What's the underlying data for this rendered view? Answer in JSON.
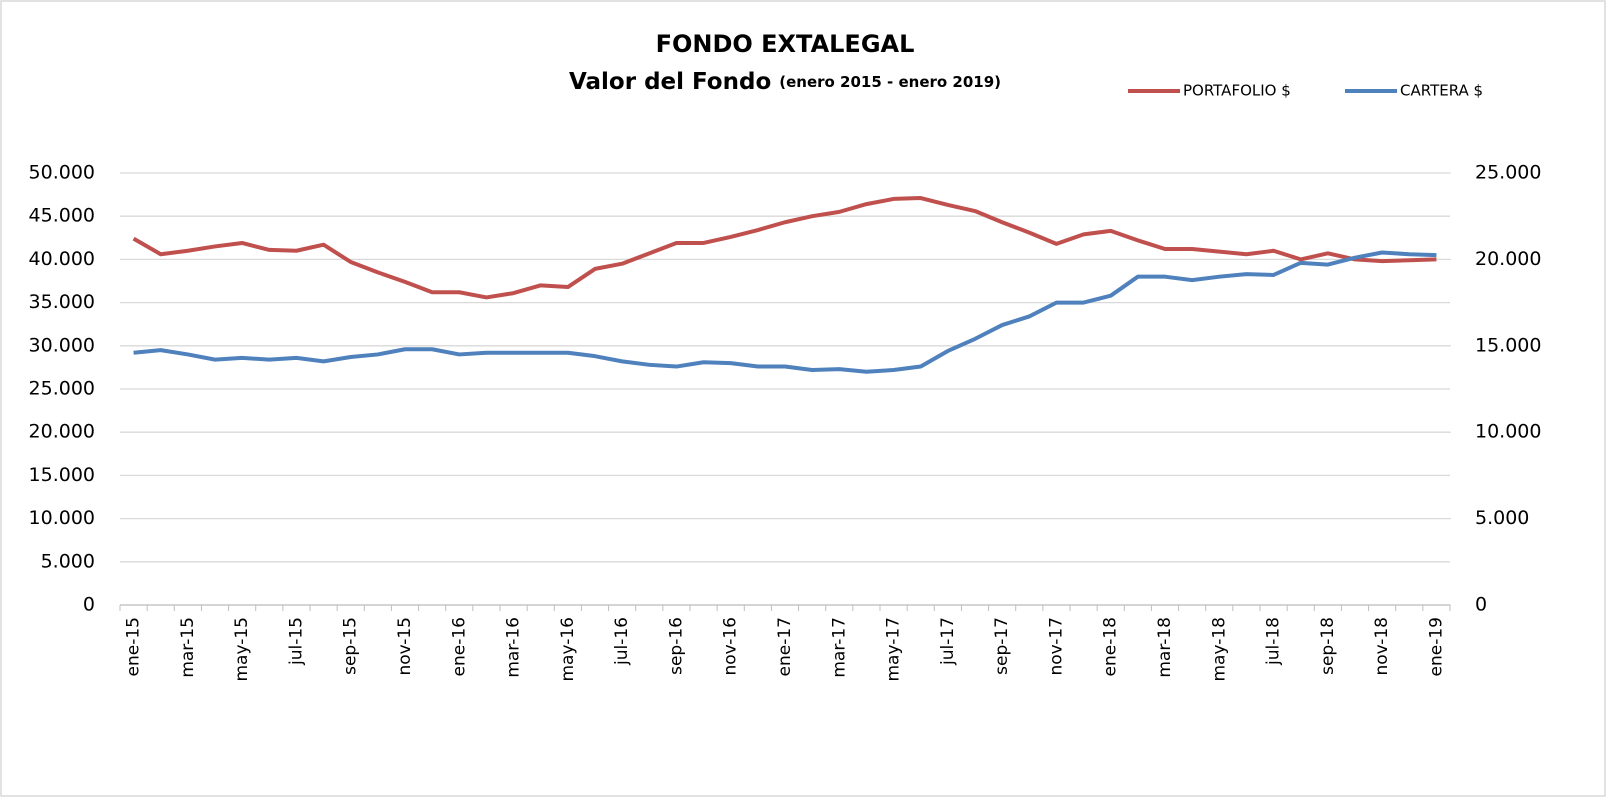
{
  "chart_data": {
    "type": "line",
    "title": "FONDO EXTALEGAL",
    "subtitle": "Valor del Fondo ",
    "subtitle_range": "(enero 2015 - enero 2019)",
    "categories": [
      "ene-15",
      null,
      "mar-15",
      null,
      "may-15",
      null,
      "jul-15",
      null,
      "sep-15",
      null,
      "nov-15",
      null,
      "ene-16",
      null,
      "mar-16",
      null,
      "may-16",
      null,
      "jul-16",
      null,
      "sep-16",
      null,
      "nov-16",
      null,
      "ene-17",
      null,
      "mar-17",
      null,
      "may-17",
      null,
      "jul-17",
      null,
      "sep-17",
      null,
      "nov-17",
      null,
      "ene-18",
      null,
      "mar-18",
      null,
      "may-18",
      null,
      "jul-18",
      null,
      "sep-18",
      null,
      "nov-18",
      null,
      "ene-19"
    ],
    "series": [
      {
        "name": "PORTAFOLIO $",
        "color": "#c0504d",
        "axis": "y",
        "values": [
          42400,
          40600,
          41000,
          41500,
          41900,
          41100,
          41000,
          41700,
          39700,
          38500,
          37400,
          36200,
          36200,
          35600,
          36100,
          37000,
          36800,
          38900,
          39500,
          40700,
          41900,
          41900,
          42600,
          43400,
          44300,
          45000,
          45500,
          46400,
          47000,
          47100,
          46300,
          45600,
          44300,
          43100,
          41800,
          42900,
          43300,
          42200,
          41200,
          41200,
          40900,
          40600,
          41000,
          40000,
          40700,
          40000,
          39800,
          39900,
          40000
        ]
      },
      {
        "name": "CARTERA $",
        "color": "#4f81bd",
        "axis": "y2",
        "values": [
          14600,
          14750,
          14500,
          14200,
          14300,
          14200,
          14300,
          14100,
          14350,
          14500,
          14800,
          14800,
          14500,
          14600,
          14600,
          14600,
          14600,
          14400,
          14100,
          13900,
          13800,
          14050,
          14000,
          13800,
          13800,
          13600,
          13650,
          13500,
          13600,
          13800,
          14700,
          15400,
          16200,
          16700,
          17500,
          17500,
          17900,
          19000,
          19000,
          18800,
          19000,
          19150,
          19100,
          19800,
          19700,
          20100,
          20400,
          20300,
          20250
        ]
      }
    ],
    "ylim": [
      0,
      50000
    ],
    "yticks": [
      0,
      {
        "value": 5000,
        "label": "5.000"
      },
      {
        "value": 10000,
        "label": "10.000"
      },
      {
        "value": 15000,
        "label": "15.000"
      },
      {
        "value": 20000,
        "label": "20.000"
      },
      {
        "value": 25000,
        "label": "25.000"
      },
      {
        "value": 30000,
        "label": "30.000"
      },
      {
        "value": 35000,
        "label": "35.000"
      },
      {
        "value": 40000,
        "label": "40.000"
      },
      {
        "value": 45000,
        "label": "45.000"
      },
      {
        "value": 50000,
        "label": "50.000"
      }
    ],
    "y2lim": [
      0,
      25000
    ],
    "y2ticks": [
      0,
      {
        "value": 5000,
        "label": "5.000"
      },
      {
        "value": 10000,
        "label": "10.000"
      },
      {
        "value": 15000,
        "label": "15.000"
      },
      {
        "value": 20000,
        "label": "20.000"
      },
      {
        "value": 25000,
        "label": "25.000"
      }
    ],
    "grid": true,
    "legend": "top-right"
  }
}
